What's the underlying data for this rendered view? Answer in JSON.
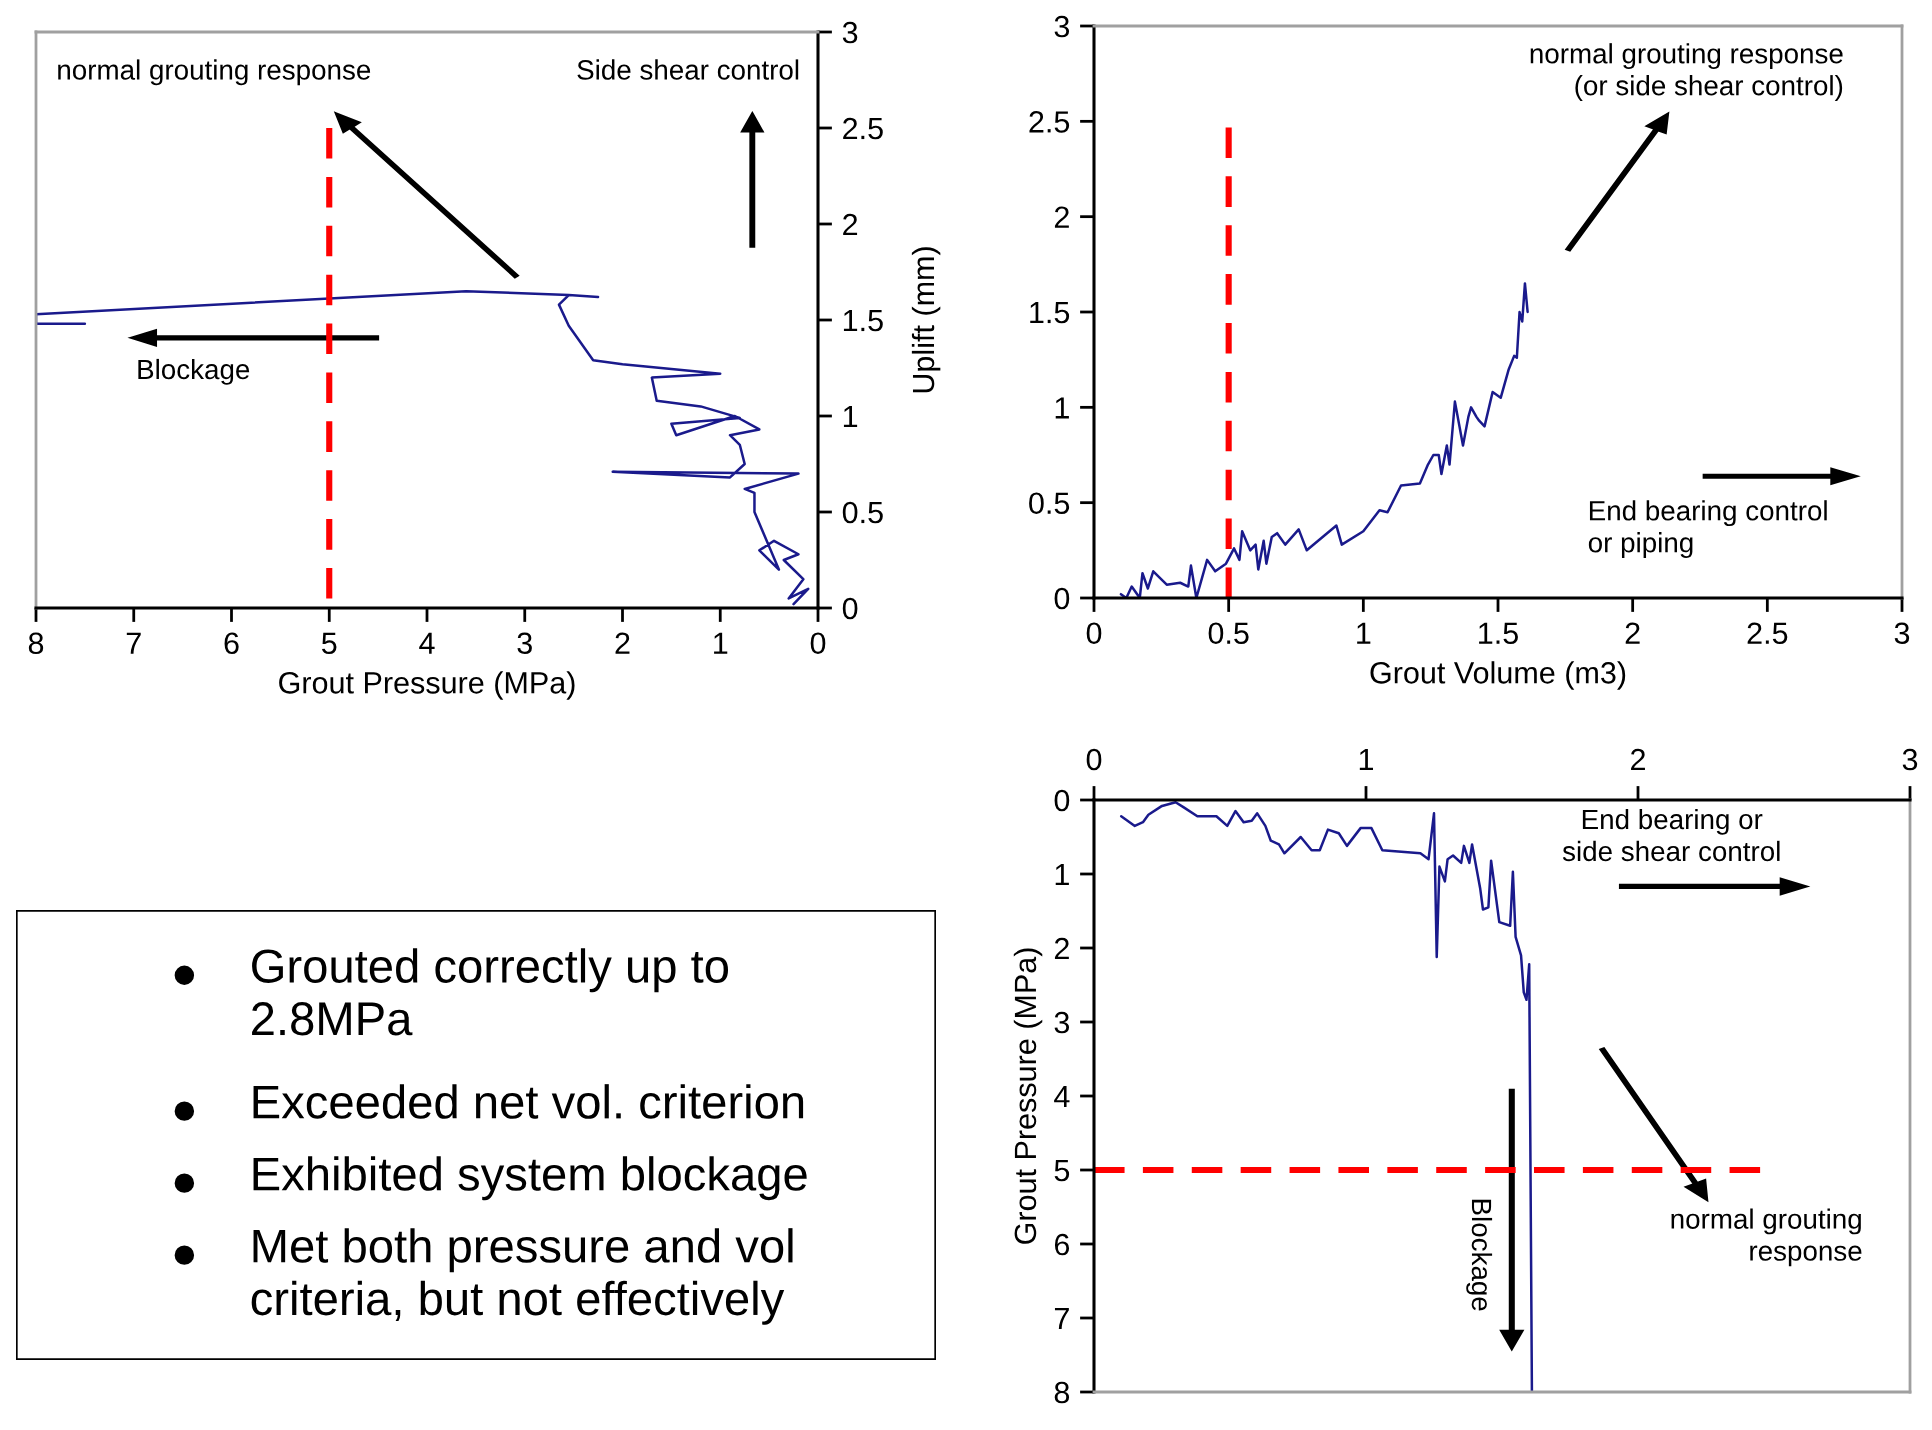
{
  "chart_data": [
    {
      "type": "line",
      "xlabel": "Grout Pressure (MPa)",
      "y2label": "Uplift (mm)",
      "xlim": [
        8,
        0
      ],
      "xticks": [
        8,
        7,
        6,
        5,
        4,
        3,
        2,
        1,
        0
      ],
      "y2lim": [
        0,
        3
      ],
      "y2ticks": [
        0,
        0.5,
        1,
        1.5,
        2,
        2.5,
        3
      ],
      "annotations": [
        "normal grouting response",
        "Side shear control",
        "Blockage"
      ],
      "series": [
        {
          "color": "#1a1a8c",
          "axis": "y2",
          "line_style": "solid",
          "x": [
            0.25,
            0.1,
            0.3,
            0.15,
            0.35,
            0.2,
            0.45,
            0.6,
            0.4,
            0.55,
            0.65,
            0.65,
            0.75,
            0.2,
            2.1,
            0.9,
            0.75,
            0.8,
            0.9,
            0.6,
            0.85,
            1.45,
            1.5,
            0.8,
            1.2,
            1.65,
            1.7,
            1.0,
            2.0,
            2.3,
            2.55,
            2.65,
            2.55,
            2.25,
            2.55,
            3.6,
            8,
            8,
            7.5
          ],
          "values": [
            0.02,
            0.1,
            0.05,
            0.15,
            0.25,
            0.28,
            0.35,
            0.3,
            0.2,
            0.38,
            0.5,
            0.6,
            0.62,
            0.7,
            0.71,
            0.68,
            0.75,
            0.85,
            0.9,
            0.93,
            1.0,
            0.9,
            0.96,
            0.99,
            1.05,
            1.08,
            1.2,
            1.22,
            1.27,
            1.29,
            1.47,
            1.58,
            1.63,
            1.62,
            1.63,
            1.65,
            1.53,
            1.48,
            1.48
          ]
        },
        {
          "color": "#ff0000",
          "axis": "y2",
          "line_style": "dashed",
          "x": [
            5,
            5
          ],
          "values": [
            2.5,
            0
          ]
        }
      ]
    },
    {
      "type": "line",
      "xlabel": "Grout Volume (m3)",
      "xlim": [
        0,
        3
      ],
      "xticks": [
        0,
        0.5,
        1,
        1.5,
        2,
        2.5,
        3
      ],
      "ylim": [
        0,
        3
      ],
      "yticks": [
        0,
        0.5,
        1,
        1.5,
        2,
        2.5,
        3
      ],
      "annotations": [
        "normal grouting response\n(or side shear control)",
        "End bearing control\nor piping"
      ],
      "series": [
        {
          "color": "#1a1a8c",
          "line_style": "solid",
          "x": [
            0.1,
            0.12,
            0.14,
            0.17,
            0.18,
            0.2,
            0.22,
            0.27,
            0.32,
            0.35,
            0.36,
            0.38,
            0.42,
            0.45,
            0.49,
            0.52,
            0.54,
            0.55,
            0.58,
            0.6,
            0.61,
            0.63,
            0.64,
            0.66,
            0.68,
            0.71,
            0.76,
            0.79,
            0.9,
            0.92,
            1.0,
            1.06,
            1.09,
            1.14,
            1.21,
            1.24,
            1.26,
            1.28,
            1.29,
            1.31,
            1.32,
            1.34,
            1.37,
            1.39,
            1.4,
            1.42,
            1.43,
            1.45,
            1.48,
            1.51,
            1.54,
            1.56,
            1.57,
            1.58,
            1.59,
            1.6,
            1.61
          ],
          "values": [
            0.02,
            0,
            0.06,
            0,
            0.13,
            0.05,
            0.14,
            0.07,
            0.08,
            0.06,
            0.17,
            0,
            0.2,
            0.14,
            0.18,
            0.26,
            0.2,
            0.35,
            0.25,
            0.28,
            0.15,
            0.3,
            0.18,
            0.32,
            0.34,
            0.28,
            0.36,
            0.25,
            0.38,
            0.28,
            0.35,
            0.46,
            0.45,
            0.59,
            0.6,
            0.7,
            0.75,
            0.75,
            0.65,
            0.8,
            0.7,
            1.03,
            0.8,
            0.95,
            1.0,
            0.95,
            0.93,
            0.9,
            1.08,
            1.05,
            1.2,
            1.27,
            1.26,
            1.5,
            1.45,
            1.65,
            1.5
          ]
        },
        {
          "color": "#ff0000",
          "line_style": "dashed",
          "x": [
            0.5,
            0.5
          ],
          "values": [
            0,
            2.5
          ]
        }
      ]
    },
    {
      "type": "line",
      "ylabel": "Grout Pressure (MPa)",
      "xlim": [
        0,
        3
      ],
      "xticks": [
        0,
        1,
        2,
        3
      ],
      "ylim": [
        8,
        0
      ],
      "yticks": [
        0,
        1,
        2,
        3,
        4,
        5,
        6,
        7,
        8
      ],
      "annotations": [
        "End bearing or\nside shear control",
        "normal grouting\nresponse",
        "Blockage"
      ],
      "series": [
        {
          "color": "#1a1a8c",
          "line_style": "solid",
          "x": [
            0.1,
            0.15,
            0.18,
            0.2,
            0.25,
            0.3,
            0.33,
            0.38,
            0.45,
            0.49,
            0.52,
            0.55,
            0.58,
            0.6,
            0.63,
            0.65,
            0.68,
            0.7,
            0.76,
            0.8,
            0.83,
            0.86,
            0.9,
            0.93,
            0.98,
            1.02,
            1.06,
            1.2,
            1.23,
            1.25,
            1.26,
            1.27,
            1.29,
            1.3,
            1.32,
            1.35,
            1.36,
            1.38,
            1.39,
            1.42,
            1.43,
            1.45,
            1.46,
            1.49,
            1.53,
            1.54,
            1.55,
            1.57,
            1.58,
            1.59,
            1.6,
            1.61
          ],
          "values": [
            0.22,
            0.35,
            0.3,
            0.2,
            0.08,
            0.03,
            0.1,
            0.22,
            0.22,
            0.35,
            0.15,
            0.3,
            0.28,
            0.18,
            0.35,
            0.55,
            0.6,
            0.72,
            0.5,
            0.68,
            0.68,
            0.4,
            0.45,
            0.62,
            0.38,
            0.38,
            0.68,
            0.72,
            0.8,
            0.18,
            2.12,
            0.9,
            1.1,
            0.8,
            0.75,
            0.85,
            0.62,
            0.85,
            0.6,
            1.2,
            1.48,
            1.45,
            0.82,
            1.65,
            1.7,
            0.97,
            1.85,
            2.1,
            2.6,
            2.7,
            2.22,
            8
          ]
        },
        {
          "color": "#ff0000",
          "line_style": "dashed",
          "x": [
            0,
            2.45
          ],
          "values": [
            5,
            5
          ]
        }
      ]
    },
    {
      "type": "other",
      "annotations": [
        "Grouted correctly up to 2.8MPa",
        "Exceeded net vol. criterion",
        "Exhibited system blockage",
        "Met both pressure and vol criteria, but not effectively"
      ]
    }
  ]
}
